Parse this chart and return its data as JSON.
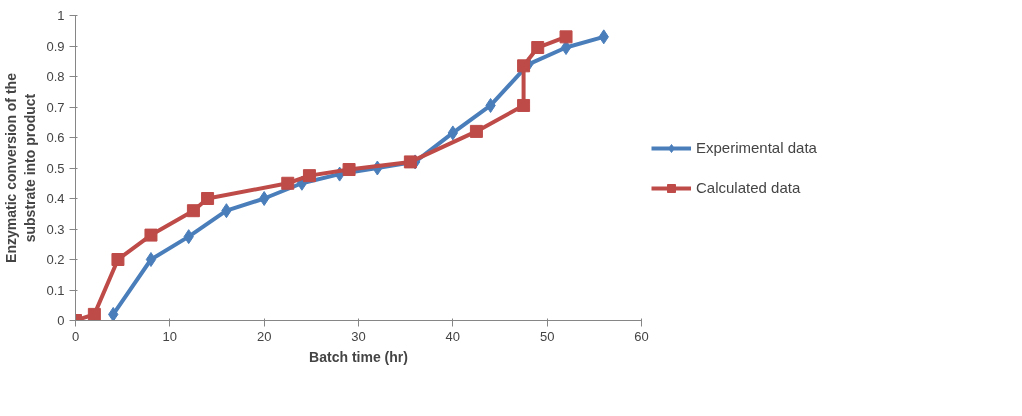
{
  "chart_data": {
    "type": "line",
    "xlabel": "Batch time (hr)",
    "ylabel": "Enzymatic conversion of the\nsubstrate into product",
    "xlim": [
      0,
      60
    ],
    "xticks": [
      0,
      10,
      20,
      30,
      40,
      50,
      60
    ],
    "ylim": [
      0,
      1
    ],
    "yticks": [
      0,
      0.1,
      0.2,
      0.3,
      0.4,
      0.5,
      0.6,
      0.7,
      0.8,
      0.9,
      1
    ],
    "grid": false,
    "legend": "right",
    "series": [
      {
        "name": "Experimental data",
        "color": "#4a7ebb",
        "marker": "diamond",
        "x": [
          4,
          8,
          12,
          16,
          20,
          24,
          28,
          32,
          36,
          40,
          44,
          48,
          52,
          56
        ],
        "values": [
          0.02,
          0.2,
          0.275,
          0.36,
          0.4,
          0.45,
          0.48,
          0.5,
          0.52,
          0.615,
          0.705,
          0.84,
          0.895,
          0.93
        ]
      },
      {
        "name": "Calculated data",
        "color": "#be4b48",
        "marker": "square",
        "x": [
          0,
          2,
          4.5,
          8,
          12.5,
          14,
          22.5,
          24.8,
          29,
          35.5,
          42.5,
          47.5,
          47.5,
          49,
          52
        ],
        "values": [
          0,
          0.02,
          0.2,
          0.28,
          0.36,
          0.4,
          0.45,
          0.475,
          0.495,
          0.52,
          0.62,
          0.705,
          0.835,
          0.895,
          0.93
        ]
      }
    ]
  }
}
